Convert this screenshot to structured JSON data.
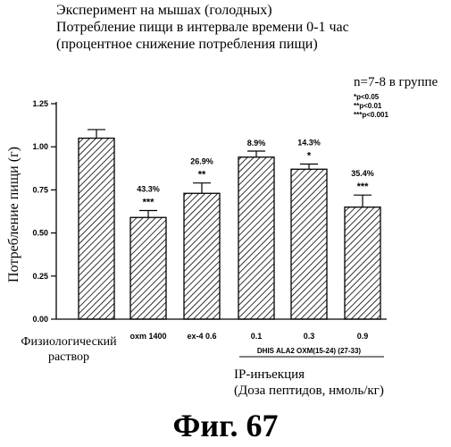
{
  "header": {
    "line1": "Эксперимент на мышах (голодных)",
    "line2": "Потребление пищи в интервале времени 0-1 час",
    "line3": "(процентное снижение потребления пищи)"
  },
  "group_note": "n=7-8 в группе",
  "significance_legend": [
    "*p<0.05",
    "**p<0.01",
    "***p<0.001"
  ],
  "route": {
    "line1": "IP-инъекция",
    "line2": "(Доза пептидов, нмоль/кг)"
  },
  "figure_label": "Фиг. 67",
  "chart_data": {
    "type": "bar",
    "ylabel": "Потребление пищи (г)",
    "ylim": [
      0,
      1.25
    ],
    "yticks": [
      "0.00",
      "0.25",
      "0.50",
      "0.75",
      "1.00",
      "1.25"
    ],
    "categories": [
      "Физиологический раствор",
      "oxm 1400",
      "ex-4 0.6",
      "0.1",
      "0.3",
      "0.9"
    ],
    "values": [
      1.05,
      0.59,
      0.73,
      0.94,
      0.87,
      0.65
    ],
    "errors": [
      0.05,
      0.04,
      0.06,
      0.035,
      0.03,
      0.07
    ],
    "pct_labels": [
      "",
      "43.3%",
      "26.9%",
      "8.9%",
      "14.3%",
      "35.4%"
    ],
    "stars": [
      "",
      "***",
      "**",
      "",
      "*",
      "***"
    ],
    "group_label": "DHIS ALA2 OXM(15-24) (27-33)",
    "fill": "hatched"
  }
}
